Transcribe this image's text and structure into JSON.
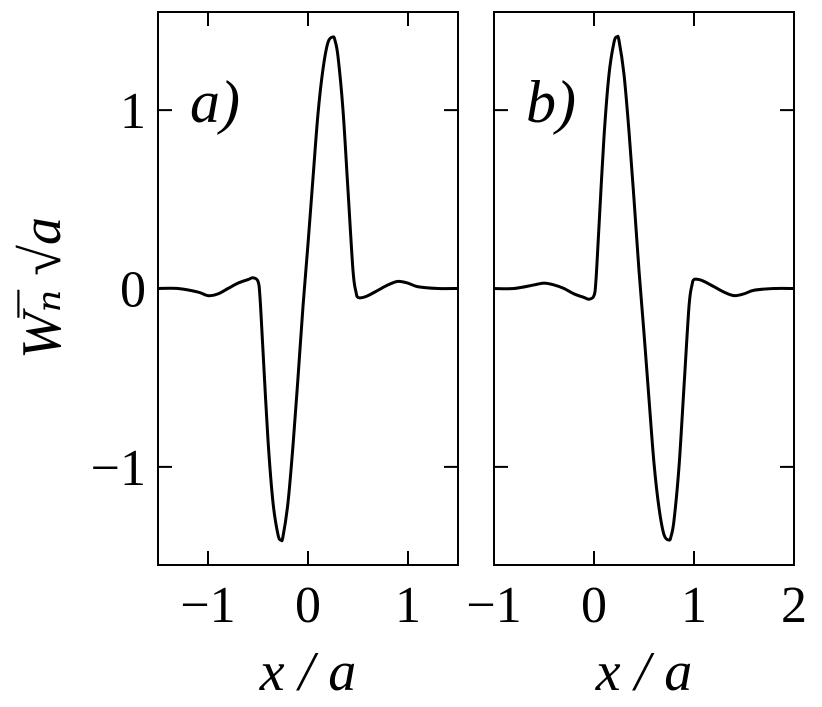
{
  "chart_data": [
    {
      "type": "line",
      "panel_label": "a)",
      "xlabel": "x / a",
      "ylabel": "Wₙ̅ √a",
      "xlim": [
        -1.5,
        1.5
      ],
      "ylim": [
        -1.55,
        1.55
      ],
      "x_ticks": [
        -1,
        0,
        1
      ],
      "x_tick_labels": [
        "−1",
        "0",
        "1"
      ],
      "y_ticks": [
        -1,
        0,
        1
      ],
      "y_tick_labels": [
        "−1",
        "0",
        "1"
      ],
      "series": [
        {
          "color": "#000000",
          "x": [
            -1.5,
            -1.3,
            -1.1,
            -1.0,
            -0.9,
            -0.8,
            -0.7,
            -0.6,
            -0.55,
            -0.5,
            -0.48,
            -0.45,
            -0.4,
            -0.35,
            -0.3,
            -0.27,
            -0.25,
            -0.2,
            -0.15,
            -0.1,
            -0.05,
            0.0,
            0.05,
            0.1,
            0.15,
            0.2,
            0.25,
            0.27,
            0.3,
            0.35,
            0.4,
            0.45,
            0.48,
            0.5,
            0.55,
            0.6,
            0.7,
            0.8,
            0.9,
            1.0,
            1.1,
            1.3,
            1.5
          ],
          "y": [
            0.0,
            0.0,
            -0.02,
            -0.04,
            -0.03,
            0.0,
            0.03,
            0.05,
            0.06,
            0.04,
            -0.05,
            -0.35,
            -0.85,
            -1.2,
            -1.38,
            -1.41,
            -1.39,
            -1.2,
            -0.88,
            -0.5,
            -0.1,
            0.25,
            0.62,
            0.98,
            1.23,
            1.38,
            1.41,
            1.39,
            1.3,
            1.0,
            0.55,
            0.1,
            -0.02,
            -0.05,
            -0.05,
            -0.04,
            -0.01,
            0.02,
            0.04,
            0.03,
            0.01,
            0.0,
            0.0
          ]
        }
      ]
    },
    {
      "type": "line",
      "panel_label": "b)",
      "xlabel": "x / a",
      "xlim": [
        -1.0,
        2.0
      ],
      "ylim": [
        -1.55,
        1.55
      ],
      "x_ticks": [
        -1,
        0,
        1,
        2
      ],
      "x_tick_labels": [
        "−1",
        "0",
        "1",
        "2"
      ],
      "y_ticks": [
        -1,
        0,
        1
      ],
      "series": [
        {
          "color": "#000000",
          "x": [
            -1.0,
            -0.8,
            -0.6,
            -0.5,
            -0.4,
            -0.3,
            -0.2,
            -0.1,
            -0.05,
            0.0,
            0.02,
            0.05,
            0.1,
            0.15,
            0.2,
            0.23,
            0.25,
            0.3,
            0.35,
            0.4,
            0.45,
            0.5,
            0.55,
            0.6,
            0.65,
            0.7,
            0.75,
            0.77,
            0.8,
            0.85,
            0.9,
            0.95,
            0.98,
            1.0,
            1.05,
            1.1,
            1.2,
            1.3,
            1.4,
            1.5,
            1.6,
            1.8,
            2.0
          ],
          "y": [
            0.0,
            0.0,
            0.02,
            0.03,
            0.02,
            0.0,
            -0.03,
            -0.05,
            -0.06,
            -0.04,
            0.05,
            0.35,
            0.85,
            1.2,
            1.38,
            1.41,
            1.39,
            1.2,
            0.88,
            0.5,
            0.1,
            -0.25,
            -0.62,
            -0.98,
            -1.23,
            -1.38,
            -1.41,
            -1.39,
            -1.3,
            -1.0,
            -0.55,
            -0.1,
            0.02,
            0.05,
            0.05,
            0.04,
            0.01,
            -0.02,
            -0.04,
            -0.03,
            -0.01,
            0.0,
            0.0
          ]
        }
      ]
    }
  ]
}
